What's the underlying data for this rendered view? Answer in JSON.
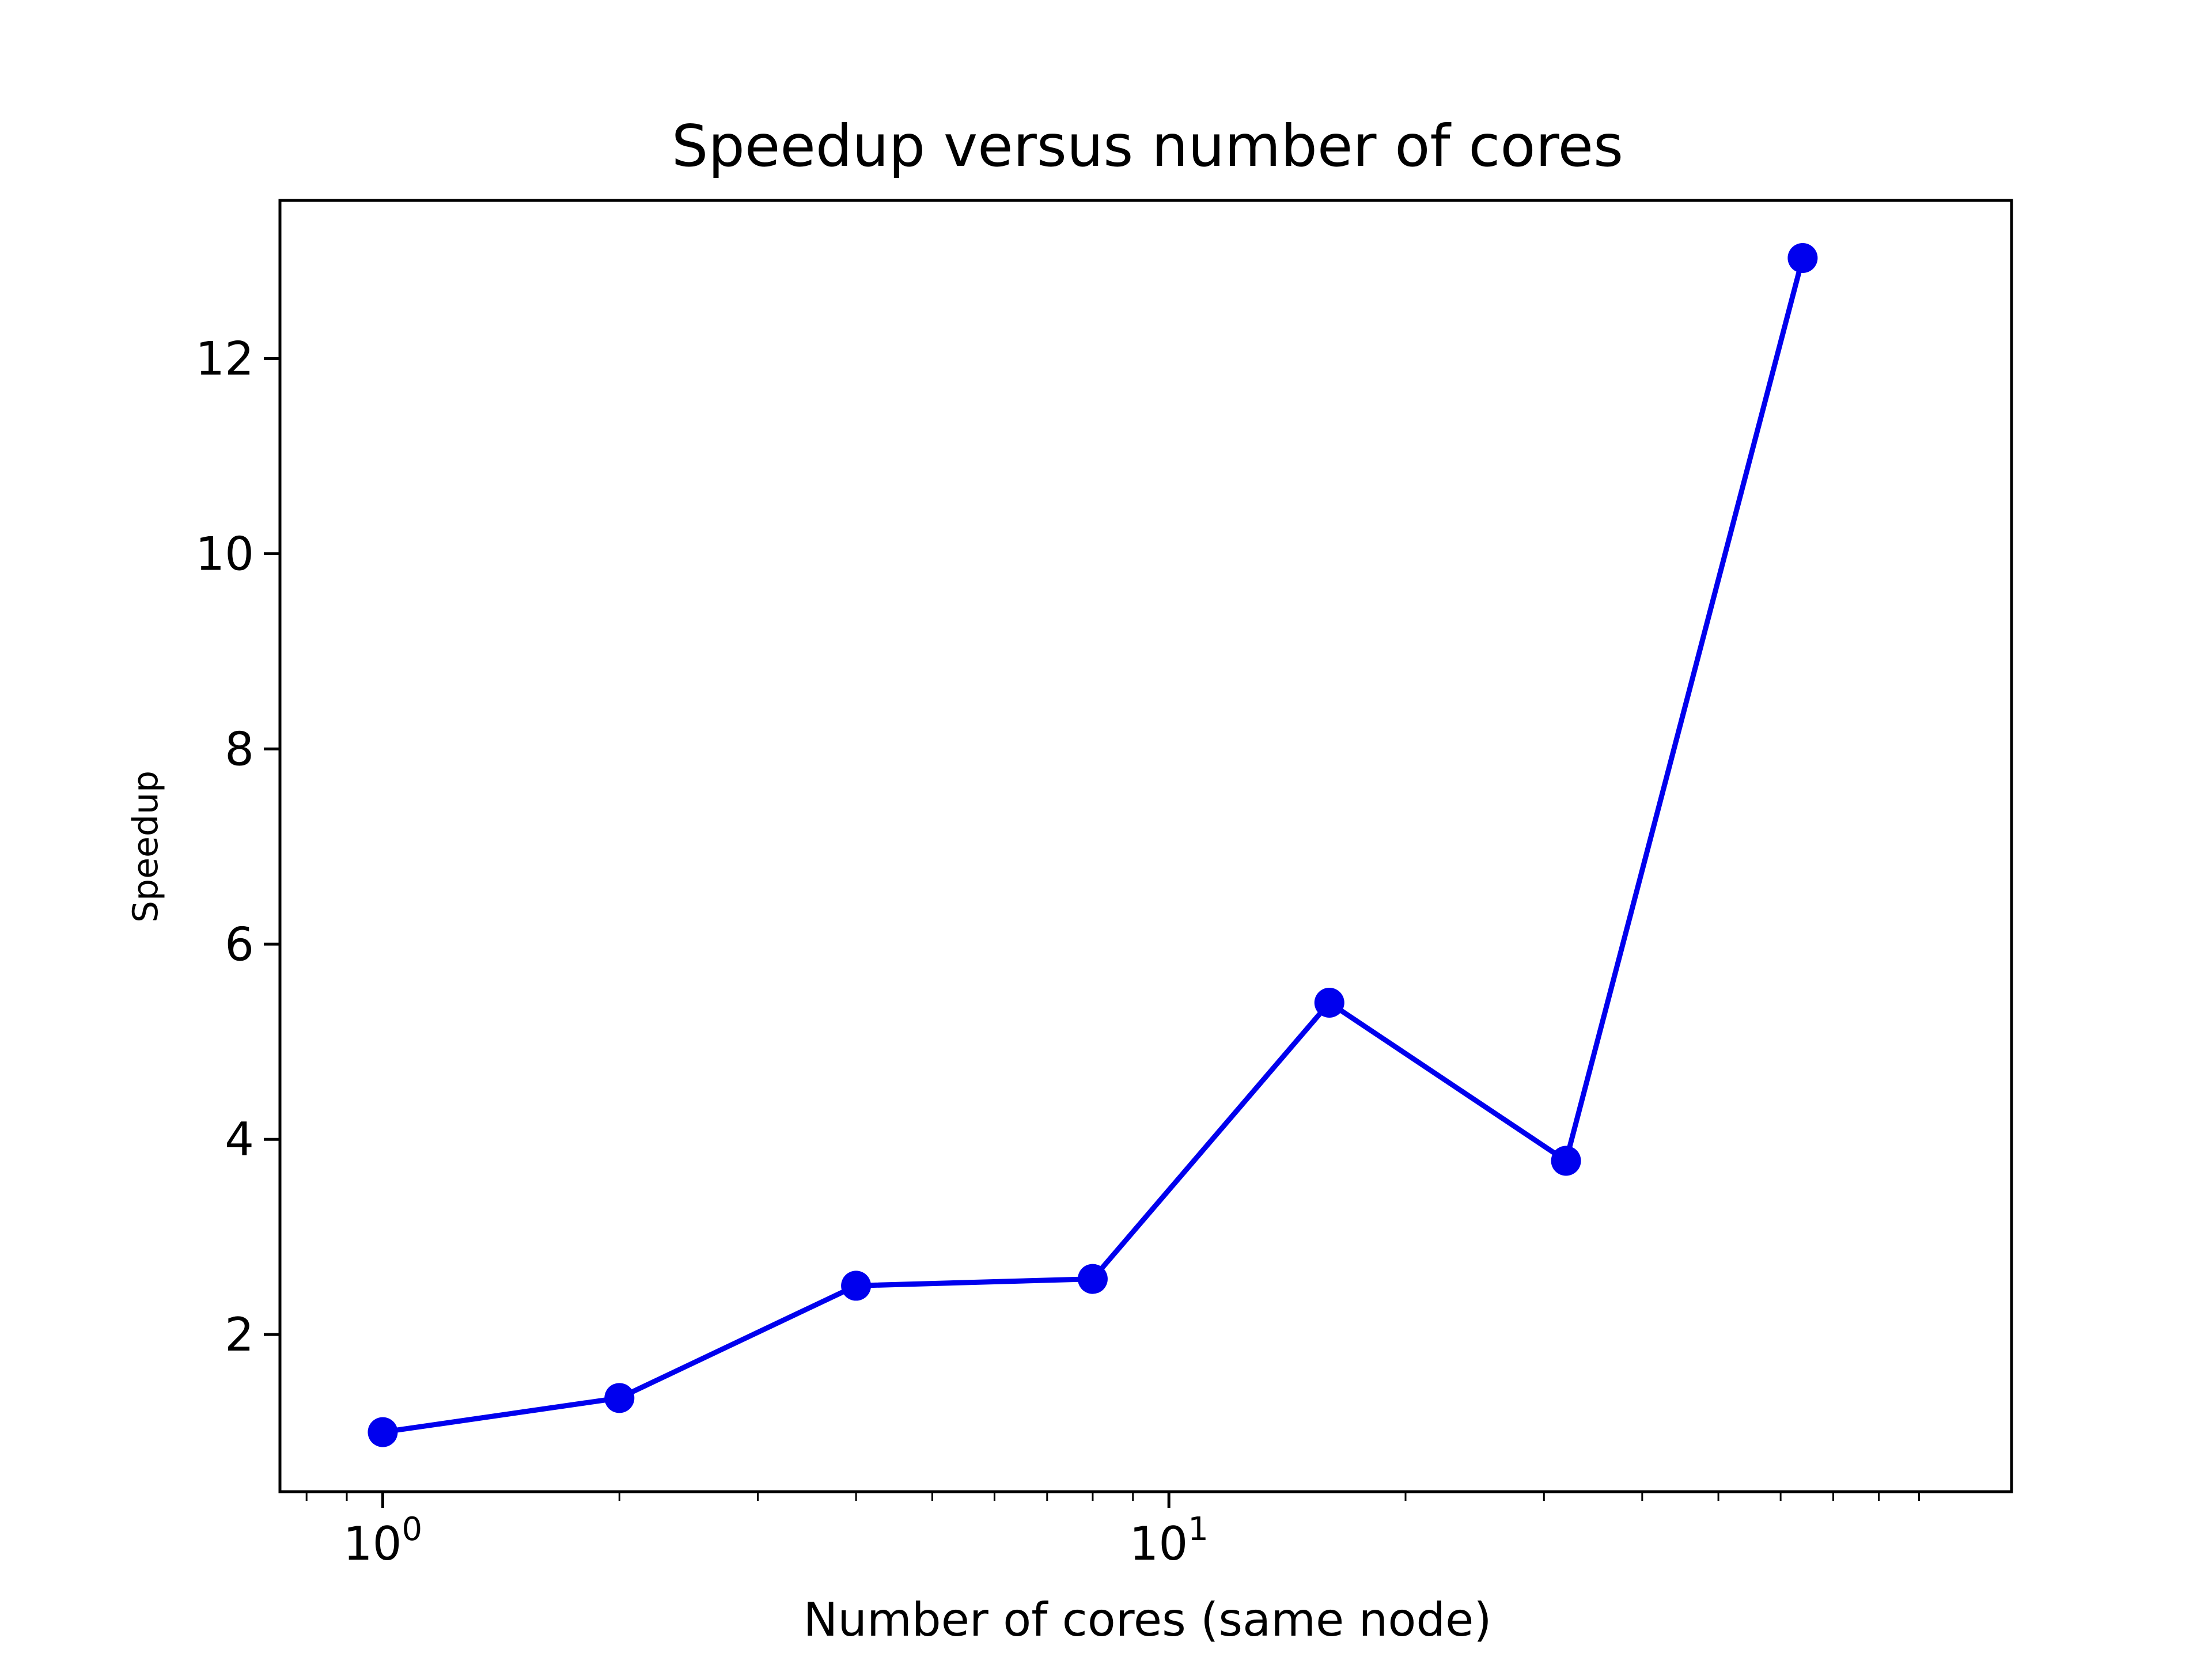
{
  "chart_data": {
    "type": "line",
    "title": "Speedup versus number of cores",
    "xlabel": "Number of cores (same node)",
    "ylabel": "Speedup",
    "xscale": "log",
    "xlim": [
      0.74,
      118
    ],
    "ylim": [
      0.39,
      13.62
    ],
    "x_ticks": [
      {
        "value": 1,
        "base": "10",
        "exp": "0"
      },
      {
        "value": 10,
        "base": "10",
        "exp": "1"
      }
    ],
    "y_ticks": [
      2,
      4,
      6,
      8,
      10,
      12
    ],
    "grid": false,
    "legend": "none",
    "series": [
      {
        "color": "#0000ee",
        "marker": "circle",
        "x": [
          1,
          2,
          4,
          8,
          16,
          32,
          64
        ],
        "y": [
          1.0,
          1.35,
          2.5,
          2.57,
          5.4,
          3.78,
          13.03
        ]
      }
    ]
  }
}
